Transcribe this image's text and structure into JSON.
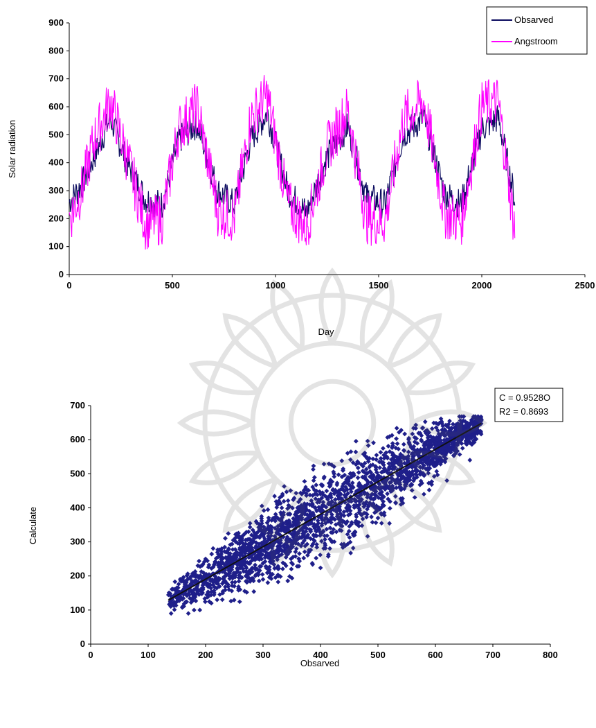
{
  "chart_data": [
    {
      "type": "line",
      "xlabel": "Day",
      "ylabel": "Solar radiation",
      "xlim": [
        0,
        2500
      ],
      "ylim": [
        0,
        900
      ],
      "xticks": [
        "0",
        "500",
        "1000",
        "1500",
        "2000",
        "2500"
      ],
      "yticks": [
        "0",
        "100",
        "200",
        "300",
        "400",
        "500",
        "600",
        "700",
        "800",
        "900"
      ],
      "grid": false,
      "legend": "top-right",
      "series": [
        {
          "name": "Obsarved",
          "color": "#0a0a5e",
          "x": [
            0,
            60,
            120,
            200,
            280,
            370,
            450,
            530,
            620,
            720,
            800,
            880,
            960,
            1060,
            1150,
            1250,
            1350,
            1440,
            1530,
            1620,
            1720,
            1820,
            1900,
            2000,
            2080,
            2160
          ],
          "y": [
            260,
            320,
            420,
            560,
            400,
            270,
            250,
            480,
            540,
            300,
            250,
            480,
            580,
            300,
            220,
            420,
            530,
            280,
            250,
            500,
            560,
            290,
            250,
            520,
            560,
            270
          ]
        },
        {
          "name": "Angstroom",
          "color": "#ff00ff",
          "x": [
            0,
            60,
            120,
            200,
            280,
            370,
            450,
            530,
            620,
            720,
            800,
            880,
            960,
            1060,
            1150,
            1250,
            1350,
            1440,
            1530,
            1620,
            1720,
            1820,
            1900,
            2000,
            2080,
            2160
          ],
          "y": [
            200,
            300,
            480,
            620,
            420,
            180,
            200,
            520,
            600,
            230,
            200,
            560,
            640,
            250,
            170,
            450,
            590,
            200,
            190,
            560,
            620,
            220,
            190,
            600,
            620,
            160
          ]
        }
      ]
    },
    {
      "type": "scatter",
      "xlabel": "Obsarved",
      "ylabel": "Calculate",
      "xlim": [
        0,
        800
      ],
      "ylim": [
        0,
        700
      ],
      "xticks": [
        "0",
        "100",
        "200",
        "300",
        "400",
        "500",
        "600",
        "700",
        "800"
      ],
      "yticks": [
        "0",
        "100",
        "200",
        "300",
        "400",
        "500",
        "600",
        "700"
      ],
      "grid": false,
      "marker_color": "#1f1f8a",
      "trendline": {
        "slope": 0.9528,
        "x_range": [
          135,
          680
        ]
      },
      "annotation": [
        "C = 0.9528O",
        "R2 = 0.8693"
      ],
      "points_x": [
        140,
        160,
        180,
        200,
        220,
        240,
        260,
        280,
        300,
        320,
        340,
        360,
        380,
        400,
        420,
        440,
        460,
        480,
        500,
        520,
        540,
        560,
        580,
        600,
        620,
        640,
        660,
        680,
        170,
        190,
        210,
        230,
        250,
        270,
        290,
        310,
        330,
        350,
        370,
        390,
        410,
        430,
        450,
        470,
        490,
        510,
        530,
        550,
        570,
        590,
        610,
        630,
        650,
        200,
        240,
        280,
        320,
        360,
        400,
        440,
        480,
        520,
        560,
        600,
        180,
        220,
        260,
        300,
        340,
        380,
        420,
        460,
        500,
        540,
        580,
        620,
        660
      ],
      "points_y": [
        90,
        110,
        160,
        180,
        210,
        230,
        250,
        270,
        290,
        300,
        330,
        350,
        360,
        390,
        400,
        420,
        440,
        460,
        480,
        500,
        510,
        530,
        560,
        570,
        590,
        610,
        630,
        660,
        90,
        100,
        120,
        150,
        170,
        200,
        220,
        260,
        280,
        300,
        320,
        340,
        370,
        380,
        400,
        420,
        440,
        460,
        480,
        500,
        530,
        550,
        570,
        590,
        620,
        250,
        280,
        320,
        370,
        400,
        440,
        470,
        500,
        520,
        560,
        600,
        100,
        130,
        160,
        190,
        230,
        270,
        300,
        330,
        370,
        410,
        440,
        480,
        540
      ]
    }
  ]
}
